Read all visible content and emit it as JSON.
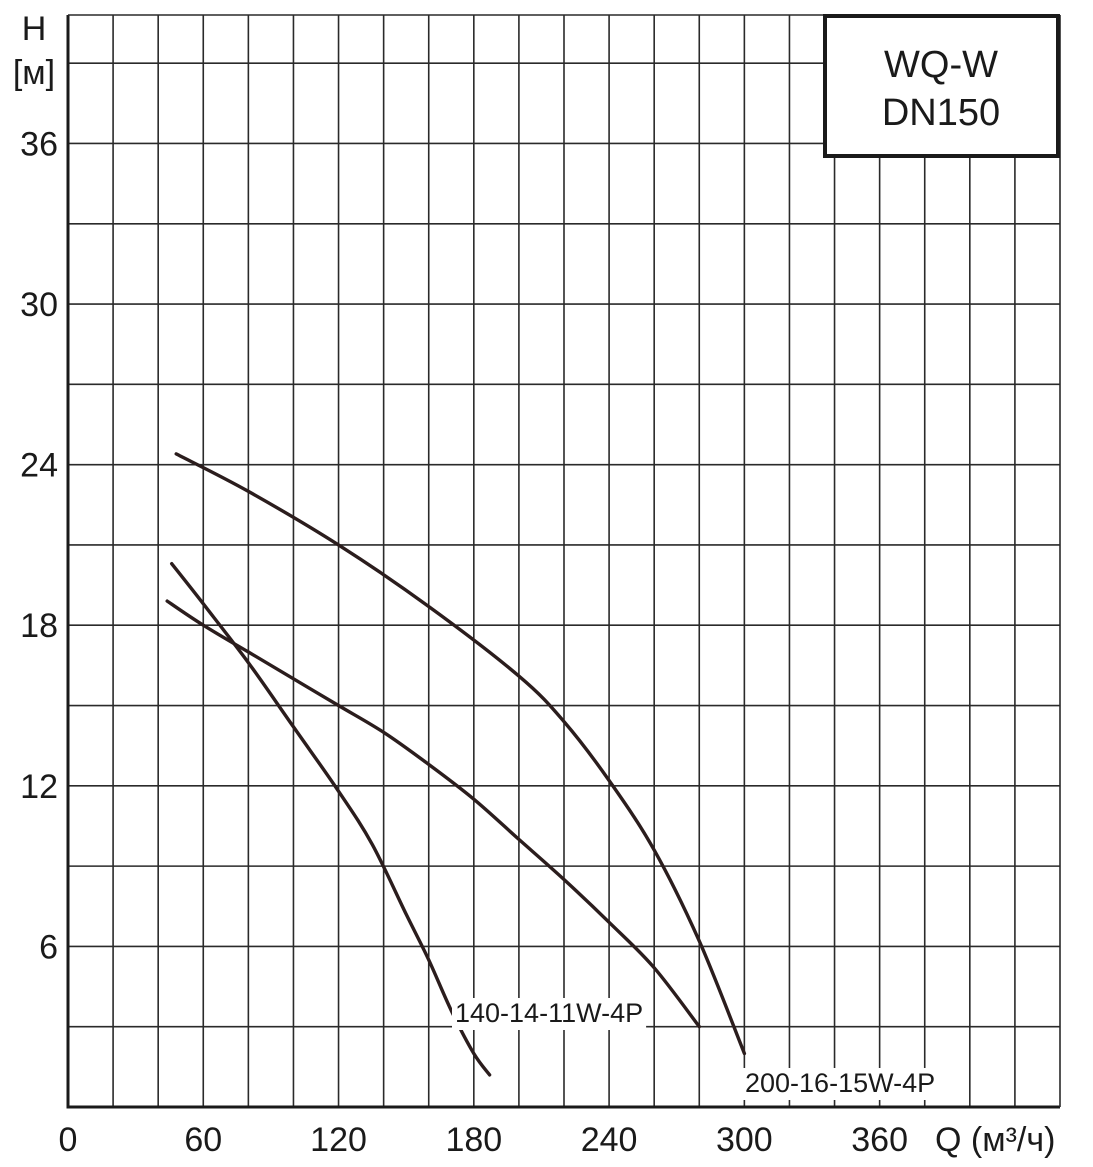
{
  "chart_data": {
    "type": "line",
    "title": "WQ-W",
    "subtitle": "DN150",
    "xlabel": "Q (м³/ч)",
    "ylabel": "H",
    "ylabel_unit": "[м]",
    "xlim": [
      0,
      440
    ],
    "ylim": [
      0,
      40.8
    ],
    "grid": true,
    "grid_x_step": 20,
    "grid_y_step": 3,
    "x_ticks": [
      0,
      60,
      120,
      180,
      240,
      300,
      360
    ],
    "y_ticks": [
      6,
      12,
      18,
      24,
      30,
      36
    ],
    "series": [
      {
        "name": "140-14-11W-4P",
        "label_position": "bottom-right",
        "x": [
          46,
          60,
          80,
          100,
          120,
          135,
          150,
          160,
          170,
          180,
          187
        ],
        "y": [
          20.3,
          18.8,
          16.6,
          14.2,
          11.8,
          9.8,
          7.2,
          5.5,
          3.6,
          2.0,
          1.2
        ]
      },
      {
        "name": "",
        "x": [
          44,
          60,
          80,
          100,
          120,
          140,
          160,
          180,
          200,
          220,
          240,
          260,
          280
        ],
        "y": [
          18.9,
          18.0,
          17.0,
          16.0,
          15.0,
          14.0,
          12.8,
          11.5,
          10.0,
          8.5,
          6.9,
          5.2,
          3.0
        ]
      },
      {
        "name": "200-16-15W-4P",
        "label_position": "bottom-right",
        "x": [
          48,
          80,
          120,
          160,
          200,
          220,
          240,
          260,
          280,
          300
        ],
        "y": [
          24.4,
          23.0,
          21.0,
          18.7,
          16.1,
          14.4,
          12.2,
          9.6,
          6.2,
          2.0
        ]
      }
    ]
  }
}
